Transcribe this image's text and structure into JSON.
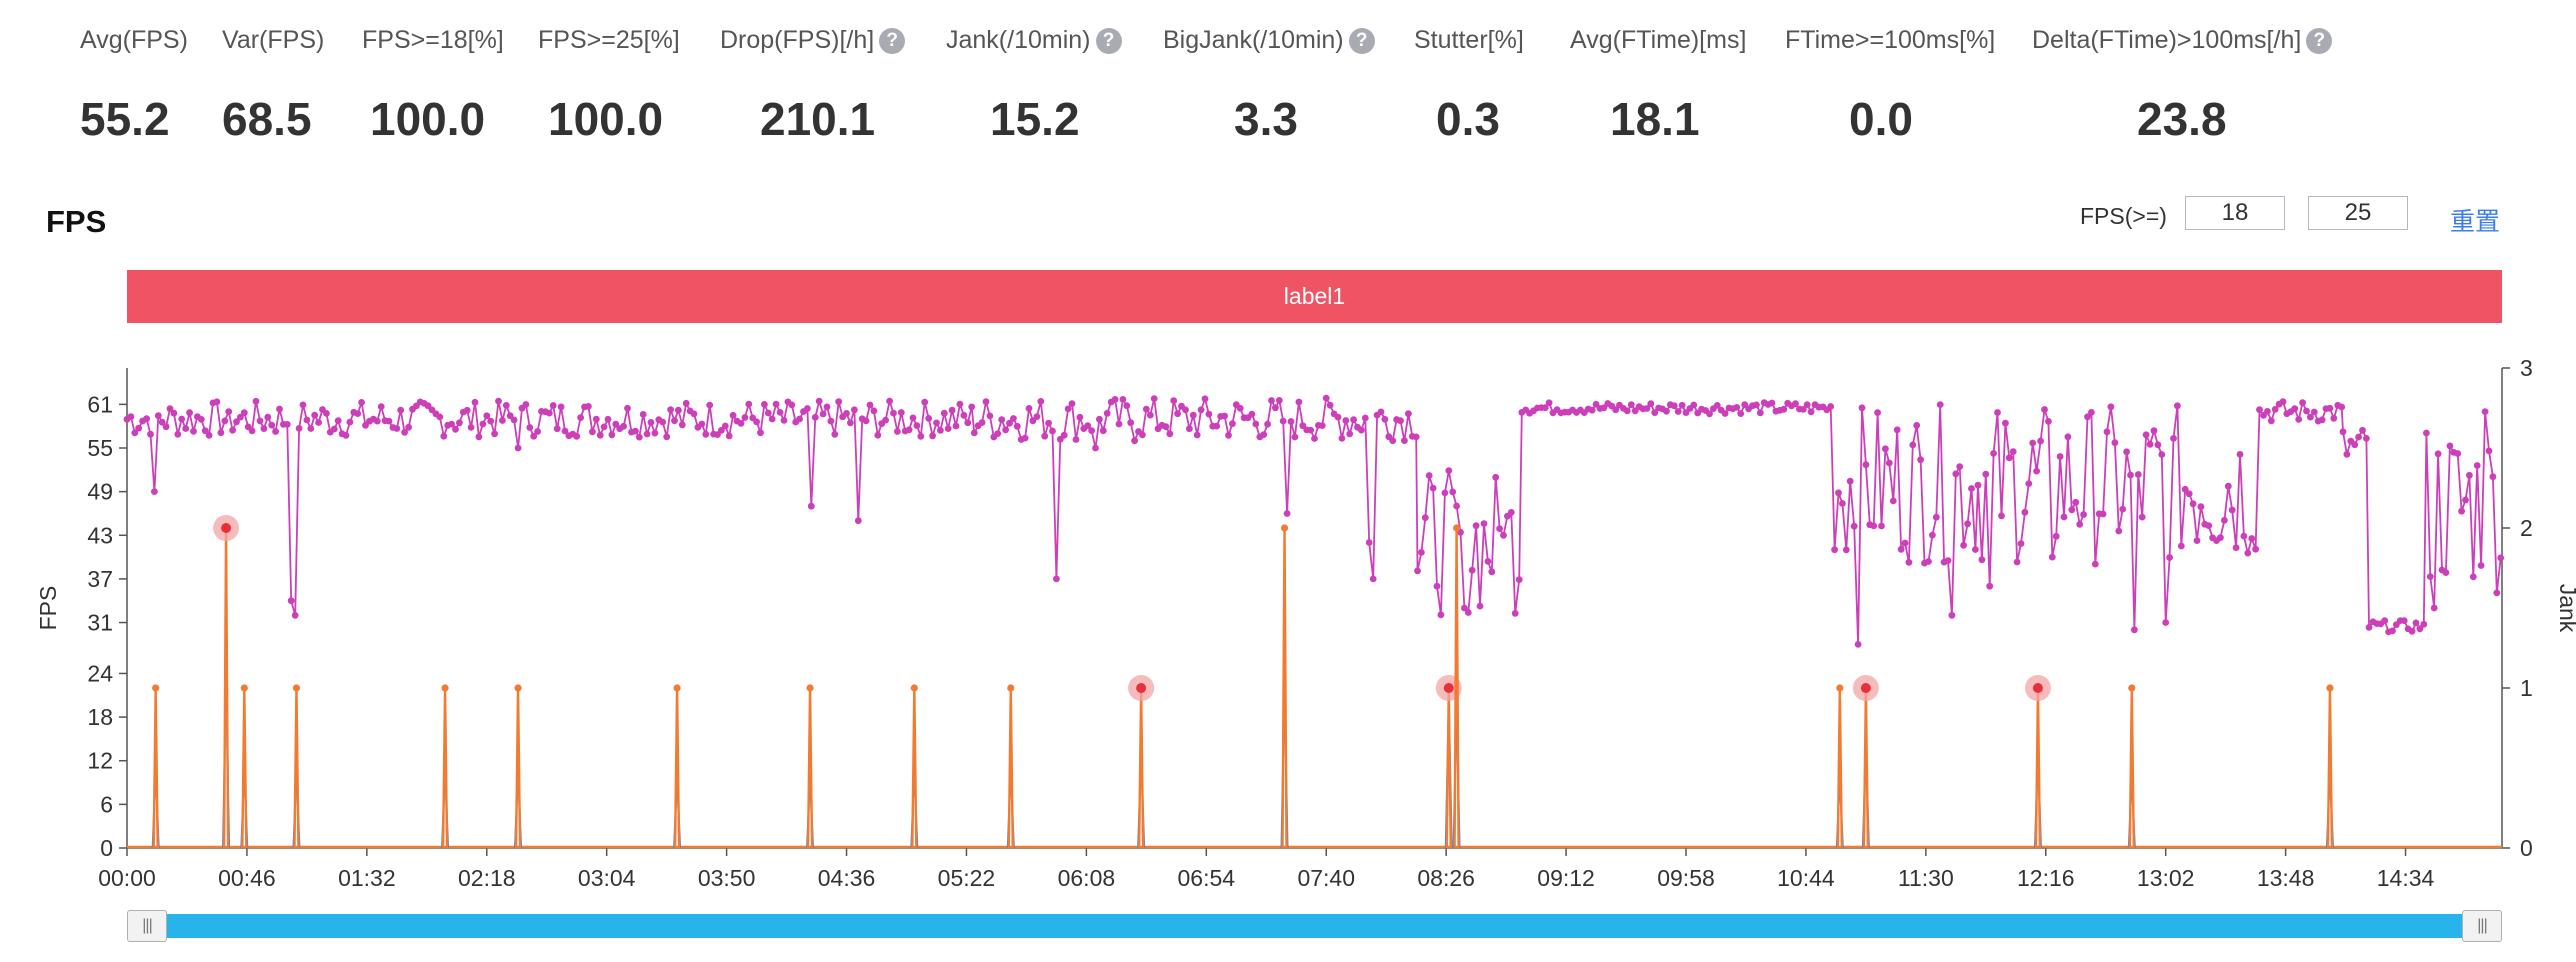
{
  "metrics": [
    {
      "label": "Avg(FPS)",
      "value": "55.2",
      "help": false
    },
    {
      "label": "Var(FPS)",
      "value": "68.5",
      "help": false
    },
    {
      "label": "FPS>=18[%]",
      "value": "100.0",
      "help": false
    },
    {
      "label": "FPS>=25[%]",
      "value": "100.0",
      "help": false
    },
    {
      "label": "Drop(FPS)[/h]",
      "value": "210.1",
      "help": true
    },
    {
      "label": "Jank(/10min)",
      "value": "15.2",
      "help": true
    },
    {
      "label": "BigJank(/10min)",
      "value": "3.3",
      "help": true
    },
    {
      "label": "Stutter[%]",
      "value": "0.3",
      "help": false
    },
    {
      "label": "Avg(FTime)[ms]",
      "value": "18.1",
      "help": false
    },
    {
      "label": "FTime>=100ms[%]",
      "value": "0.0",
      "help": false
    },
    {
      "label": "Delta(FTime)>100ms[/h]",
      "value": "23.8",
      "help": true
    }
  ],
  "help_glyph": "?",
  "panel": {
    "title": "FPS",
    "threshold_label": "FPS(>=)",
    "threshold_low": "18",
    "threshold_high": "25",
    "reset_label": "重置",
    "band_label": "label1"
  },
  "colors": {
    "fps_series": "#cc3fb9",
    "jank_series": "#f37b31",
    "bigjank_series": "#4a86d6",
    "marker_halo": "#f3a4a4",
    "marker_dot": "#e8303a",
    "band": "#ee5463",
    "slider": "#27b4ea",
    "link": "#3b7cf0"
  },
  "chart_data": {
    "type": "line",
    "ylabel": "FPS",
    "y2label": "Jank",
    "yticks": [
      0,
      6,
      12,
      18,
      24,
      31,
      37,
      43,
      49,
      55,
      61
    ],
    "ylim": [
      0,
      66
    ],
    "y2ticks": [
      0,
      1,
      2,
      3
    ],
    "y2lim": [
      0,
      3
    ],
    "xticks": [
      "00:00",
      "00:46",
      "01:32",
      "02:18",
      "03:04",
      "03:50",
      "04:36",
      "05:22",
      "06:08",
      "06:54",
      "07:40",
      "08:26",
      "09:12",
      "09:58",
      "10:44",
      "11:30",
      "12:16",
      "13:02",
      "13:48",
      "14:34"
    ],
    "xrange_seconds": [
      0,
      911
    ],
    "grid": false,
    "fps_segments": [
      {
        "t": [
          0,
          90
        ],
        "base": 59,
        "amp": 2.5,
        "dips": [
          [
            10,
            49
          ],
          [
            39,
            60
          ],
          [
            63,
            34
          ],
          [
            65,
            32
          ]
        ]
      },
      {
        "t": [
          90,
          325
        ],
        "base": 59,
        "amp": 2.5,
        "dips": [
          [
            150,
            55
          ],
          [
            263,
            47
          ],
          [
            280,
            45
          ],
          [
            358,
            56
          ]
        ]
      },
      {
        "t": [
          325,
          495
        ],
        "base": 59,
        "amp": 3,
        "dips": [
          [
            356,
            37
          ],
          [
            372,
            55
          ],
          [
            387,
            56
          ],
          [
            445,
            46
          ],
          [
            476,
            42
          ],
          [
            478,
            37
          ]
        ]
      },
      {
        "t": [
          495,
          535
        ],
        "base": 42,
        "amp": 10,
        "dips": [
          [
            503,
            36
          ],
          [
            513,
            33
          ],
          [
            528,
            43
          ]
        ]
      },
      {
        "t": [
          535,
          655
        ],
        "base": 60.5,
        "amp": 0.8,
        "dips": []
      },
      {
        "t": [
          655,
          710
        ],
        "base": 50,
        "amp": 11,
        "dips": [
          [
            664,
            28
          ],
          [
            700,
            32
          ]
        ]
      },
      {
        "t": [
          710,
          755
        ],
        "base": 50,
        "amp": 11,
        "dips": [
          [
            715,
            36
          ],
          [
            738,
            40
          ]
        ]
      },
      {
        "t": [
          755,
          818
        ],
        "base": 50,
        "amp": 11,
        "dips": [
          [
            770,
            30
          ],
          [
            782,
            31
          ]
        ]
      },
      {
        "t": [
          818,
          850
        ],
        "base": 60,
        "amp": 1.5,
        "dips": []
      },
      {
        "t": [
          850,
          860
        ],
        "base": 55,
        "amp": 3,
        "dips": []
      },
      {
        "t": [
          860,
          882
        ],
        "base": 30.5,
        "amp": 0.8,
        "dips": []
      },
      {
        "t": [
          882,
          911
        ],
        "base": 47,
        "amp": 12,
        "dips": [
          [
            885,
            33
          ],
          [
            905,
            60
          ]
        ]
      }
    ],
    "jank_spikes": [
      {
        "t": 11,
        "jank": 1,
        "big": 0.5
      },
      {
        "t": 38,
        "jank": 2,
        "big": 1.1,
        "flagged": true
      },
      {
        "t": 45,
        "jank": 1,
        "big": 0.5
      },
      {
        "t": 65,
        "jank": 1,
        "big": 0.5
      },
      {
        "t": 122,
        "jank": 1,
        "big": 0.5
      },
      {
        "t": 150,
        "jank": 1,
        "big": 0.5
      },
      {
        "t": 211,
        "jank": 1,
        "big": 0.45
      },
      {
        "t": 262,
        "jank": 1,
        "big": 0.45
      },
      {
        "t": 302,
        "jank": 1,
        "big": 0.5
      },
      {
        "t": 339,
        "jank": 1,
        "big": 0.5
      },
      {
        "t": 389,
        "jank": 1,
        "big": 0.6,
        "flagged": true
      },
      {
        "t": 444,
        "jank": 2,
        "big": 1.05
      },
      {
        "t": 507,
        "jank": 1,
        "big": 0.9,
        "flagged": true
      },
      {
        "t": 510,
        "jank": 2,
        "big": 0.9
      },
      {
        "t": 657,
        "jank": 1,
        "big": 0.45
      },
      {
        "t": 667,
        "jank": 1,
        "big": 0.65,
        "flagged": true
      },
      {
        "t": 733,
        "jank": 1,
        "big": 0.6,
        "flagged": true
      },
      {
        "t": 769,
        "jank": 1,
        "big": 0.45
      },
      {
        "t": 845,
        "jank": 1,
        "big": 0.5
      }
    ]
  }
}
